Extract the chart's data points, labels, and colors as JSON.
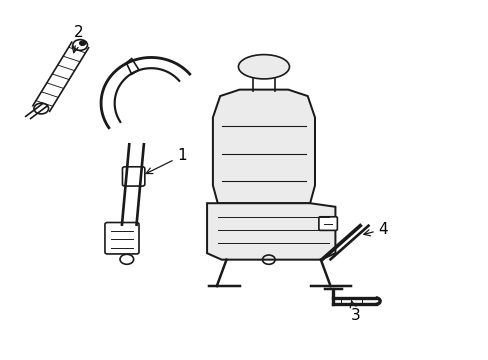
{
  "background_color": "#ffffff",
  "line_color": "#1a1a1a",
  "line_width": 1.2,
  "label_fontsize": 11,
  "figsize": [
    4.89,
    3.6
  ],
  "dpi": 100
}
